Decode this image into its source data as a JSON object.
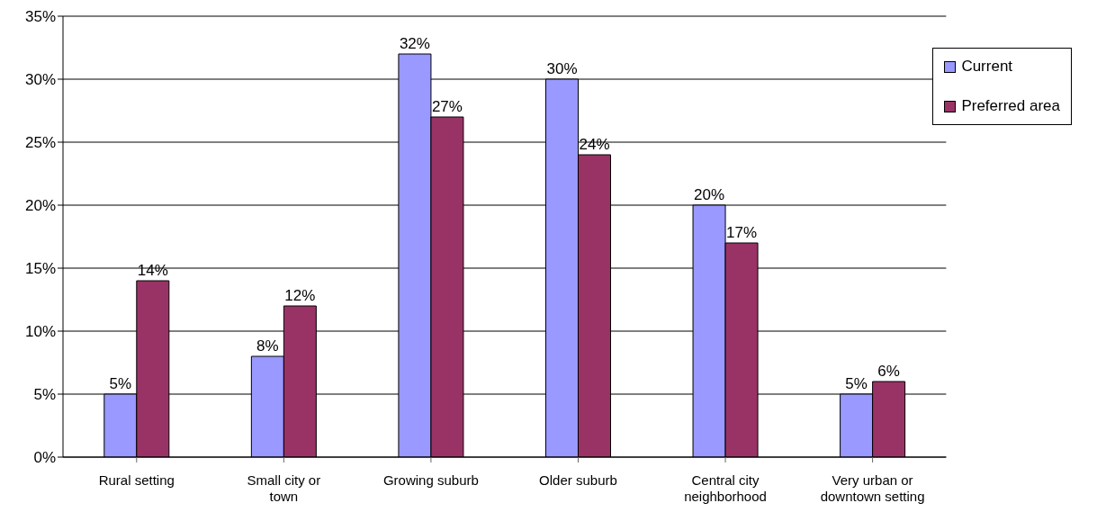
{
  "chart_data": {
    "type": "bar",
    "categories": [
      "Rural setting",
      "Small city or town",
      "Growing suburb",
      "Older suburb",
      "Central city neighborhood",
      "Very urban or downtown setting"
    ],
    "series": [
      {
        "name": "Current",
        "color": "#9999ff",
        "values": [
          5,
          8,
          32,
          30,
          20,
          5
        ],
        "value_labels": [
          "5%",
          "8%",
          "32%",
          "30%",
          "20%",
          "5%"
        ]
      },
      {
        "name": "Preferred area",
        "color": "#993366",
        "values": [
          14,
          12,
          27,
          24,
          17,
          6
        ],
        "value_labels": [
          "14%",
          "12%",
          "27%",
          "24%",
          "17%",
          "6%"
        ]
      }
    ],
    "ylim": [
      0,
      35
    ],
    "yticks": [
      {
        "value": 0,
        "label": "0%"
      },
      {
        "value": 5,
        "label": "5%"
      },
      {
        "value": 10,
        "label": "10%"
      },
      {
        "value": 15,
        "label": "15%"
      },
      {
        "value": 20,
        "label": "20%"
      },
      {
        "value": 25,
        "label": "25%"
      },
      {
        "value": 30,
        "label": "30%"
      },
      {
        "value": 35,
        "label": "35%"
      }
    ],
    "grid": "y",
    "legend": "top right"
  }
}
